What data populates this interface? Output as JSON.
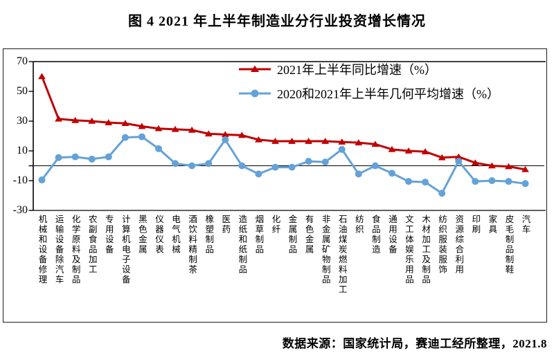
{
  "title": "图 4  2021 年上半年制造业分行业投资增长情况",
  "footer": "数据来源：国家统计局，赛迪工经所整理，2021.8",
  "colors": {
    "yoy_red": "#c00000",
    "geomean_blue": "#63a2d8",
    "axis_black": "#000000"
  },
  "chart_data": {
    "type": "line",
    "title": "图 4  2021 年上半年制造业分行业投资增长情况",
    "categories": [
      "机械和设备修理",
      "运输设备除汽车",
      "化学原料及制品",
      "农副食品加工",
      "专用设备",
      "计算机电子设备",
      "黑色金属",
      "仪器仪表",
      "电气机械",
      "酒饮料精制茶",
      "橡塑制品",
      "医药",
      "造纸和纸制品",
      "烟草制品",
      "化纤",
      "金属制品",
      "有色金属",
      "非金属矿物制品",
      "石油煤炭燃料加工",
      "纺织",
      "食品制造",
      "通用设备",
      "文工体娱乐用品",
      "木材加工及制品",
      "纺织服装服饰",
      "资源综合利用",
      "印刷",
      "家具",
      "皮毛制品制鞋",
      "汽车"
    ],
    "series": [
      {
        "name": "2021年上半年同比增速（%）",
        "marker": "triangle",
        "color": "#c00000",
        "values": [
          60,
          31.5,
          30.5,
          30,
          29,
          28.5,
          26.5,
          25,
          24.5,
          24,
          21.5,
          21,
          20.5,
          17.5,
          16.5,
          16.5,
          16.5,
          16.5,
          16,
          15.5,
          14.5,
          11,
          10,
          9.5,
          5.5,
          6,
          2,
          0,
          -0.5,
          -2.5
        ]
      },
      {
        "name": "2020和2021年上半年几何平均增速（%）",
        "marker": "circle",
        "color": "#63a2d8",
        "values": [
          -9.5,
          5.5,
          6,
          4.5,
          6,
          19,
          19.5,
          11.5,
          1.5,
          0,
          1.5,
          17.5,
          0,
          -5.5,
          -1,
          -1,
          3,
          2.5,
          11,
          -5.5,
          0,
          -5,
          -10.5,
          -11,
          -18.5,
          3,
          -10.5,
          -10,
          -10.5,
          -12
        ]
      }
    ],
    "ylim": [
      -30,
      70
    ],
    "yticks": [
      70,
      50,
      30,
      10,
      -10,
      -30
    ],
    "zero_line": true,
    "grid": false,
    "legend_position": "top-center"
  }
}
